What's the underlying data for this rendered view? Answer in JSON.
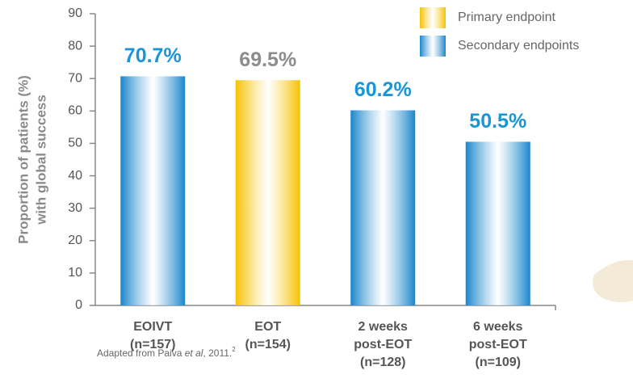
{
  "chart_data": {
    "type": "bar",
    "ylabel": [
      "Proportion of patients (%)",
      "with global success"
    ],
    "categories": [
      [
        "EOIVT",
        "(n=157)"
      ],
      [
        "EOT",
        "(n=154)"
      ],
      [
        "2 weeks",
        "post-EOT",
        "(n=128)"
      ],
      [
        "6 weeks",
        "post-EOT",
        "(n=109)"
      ]
    ],
    "series": [
      {
        "name": "Primary endpoint",
        "color": "#f6c200",
        "label_color": "#8c8c8c",
        "values": [
          null,
          69.5,
          null,
          null
        ],
        "value_labels": [
          null,
          "69.5%",
          null,
          null
        ]
      },
      {
        "name": "Secondary endpoints",
        "color": "#1a86cc",
        "label_color": "#1a95d6",
        "values": [
          70.7,
          null,
          60.2,
          50.5
        ],
        "value_labels": [
          "70.7%",
          null,
          "60.2%",
          "50.5%"
        ]
      }
    ],
    "ylim": [
      0,
      90
    ],
    "yticks": [
      0,
      10,
      20,
      30,
      40,
      50,
      60,
      70,
      80,
      90
    ],
    "footnote": [
      "Adapted from Paiva ",
      "et al",
      ", 2011.",
      "2"
    ]
  }
}
